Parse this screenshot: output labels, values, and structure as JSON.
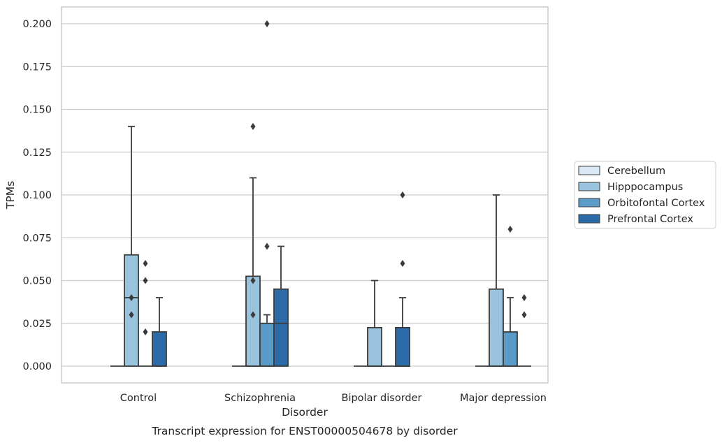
{
  "chart_data": {
    "type": "box",
    "categories": [
      "Control",
      "Schizophrenia",
      "Bipolar disorder",
      "Major depression"
    ],
    "xlabel": "Disorder",
    "ylabel": "TPMs",
    "caption": "Transcript expression for ENST00000504678 by disorder",
    "ylim": [
      -0.01,
      0.21
    ],
    "yticks": [
      0.0,
      0.025,
      0.05,
      0.075,
      0.1,
      0.125,
      0.15,
      0.175,
      0.2
    ],
    "ytick_labels": [
      "0.000",
      "0.025",
      "0.050",
      "0.075",
      "0.100",
      "0.125",
      "0.150",
      "0.175",
      "0.200"
    ],
    "grid": "horizontal",
    "legend_position": "right",
    "series": [
      {
        "name": "Cerebellum",
        "color": "#dbe9f6",
        "boxes": [
          {
            "q1": 0,
            "median": 0,
            "q3": 0,
            "whisker_low": 0,
            "whisker_high": 0,
            "outliers": []
          },
          {
            "q1": 0,
            "median": 0,
            "q3": 0,
            "whisker_low": 0,
            "whisker_high": 0,
            "outliers": []
          },
          {
            "q1": 0,
            "median": 0,
            "q3": 0,
            "whisker_low": 0,
            "whisker_high": 0,
            "outliers": []
          },
          {
            "q1": 0,
            "median": 0,
            "q3": 0,
            "whisker_low": 0,
            "whisker_high": 0,
            "outliers": []
          }
        ]
      },
      {
        "name": "Hipppocampus",
        "color": "#9ac3dd",
        "boxes": [
          {
            "q1": 0,
            "median": 0.04,
            "q3": 0.065,
            "whisker_low": 0,
            "whisker_high": 0.14,
            "outliers": [
              0.03,
              0.04
            ]
          },
          {
            "q1": 0,
            "median": 0,
            "q3": 0.0525,
            "whisker_low": 0,
            "whisker_high": 0.11,
            "outliers": [
              0.03,
              0.05,
              0.14
            ]
          },
          {
            "q1": 0,
            "median": 0,
            "q3": 0.0225,
            "whisker_low": 0,
            "whisker_high": 0.05,
            "outliers": []
          },
          {
            "q1": 0,
            "median": 0,
            "q3": 0.045,
            "whisker_low": 0,
            "whisker_high": 0.1,
            "outliers": []
          }
        ]
      },
      {
        "name": "Orbitofontal Cortex",
        "color": "#5a9bc8",
        "boxes": [
          {
            "q1": 0,
            "median": 0,
            "q3": 0,
            "whisker_low": 0,
            "whisker_high": 0,
            "outliers": [
              0.02,
              0.05,
              0.06
            ]
          },
          {
            "q1": 0,
            "median": 0,
            "q3": 0.025,
            "whisker_low": 0,
            "whisker_high": 0.03,
            "outliers": [
              0.07,
              0.2
            ]
          },
          {
            "q1": 0,
            "median": 0,
            "q3": 0,
            "whisker_low": 0,
            "whisker_high": 0,
            "outliers": []
          },
          {
            "q1": 0,
            "median": 0,
            "q3": 0.02,
            "whisker_low": 0,
            "whisker_high": 0.04,
            "outliers": [
              0.08
            ]
          }
        ]
      },
      {
        "name": "Prefrontal Cortex",
        "color": "#2c6aa8",
        "boxes": [
          {
            "q1": 0,
            "median": 0,
            "q3": 0.02,
            "whisker_low": 0,
            "whisker_high": 0.04,
            "outliers": []
          },
          {
            "q1": 0,
            "median": 0.025,
            "q3": 0.045,
            "whisker_low": 0,
            "whisker_high": 0.07,
            "outliers": []
          },
          {
            "q1": 0,
            "median": 0,
            "q3": 0.0225,
            "whisker_low": 0,
            "whisker_high": 0.04,
            "outliers": [
              0.06,
              0.1
            ]
          },
          {
            "q1": 0,
            "median": 0,
            "q3": 0,
            "whisker_low": 0,
            "whisker_high": 0,
            "outliers": [
              0.03,
              0.04
            ]
          }
        ]
      }
    ]
  }
}
